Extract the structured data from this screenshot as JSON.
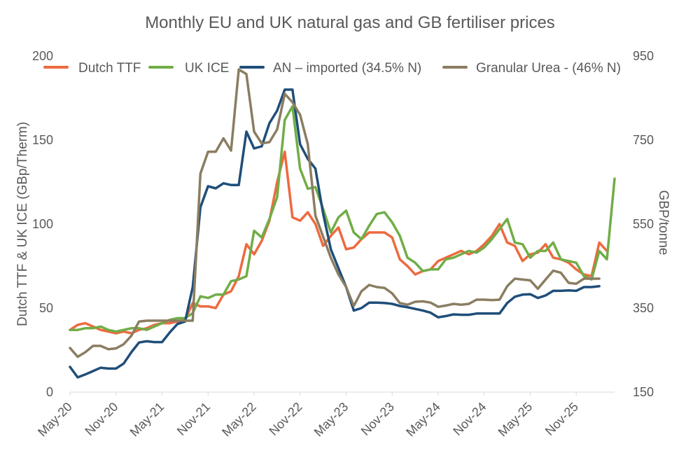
{
  "chart_data": {
    "type": "line",
    "title": "Monthly EU and UK natural gas and GB fertiliser prices",
    "ylabel_left": "Dutch TTF & UK ICE (GBp/Therm)",
    "ylabel_right": "GBP/tonne",
    "ylim_left": [
      0,
      200
    ],
    "ylim_right": [
      150,
      950
    ],
    "yticks_left": [
      "0",
      "50",
      "100",
      "150",
      "200"
    ],
    "yticks_right": [
      "150",
      "350",
      "550",
      "750",
      "950"
    ],
    "xticks": [
      "May-20",
      "Nov-20",
      "May-21",
      "Nov-21",
      "May-22",
      "Nov-22",
      "May-23",
      "Nov-23",
      "May-24",
      "Nov-24",
      "May-25",
      "Nov-25"
    ],
    "x_start": "2020-05",
    "legend_position": "top",
    "grid": false,
    "series": [
      {
        "name": "Dutch TTF",
        "axis": "left",
        "color": "#ED6A3F",
        "values": [
          37,
          40,
          41,
          39,
          37,
          36,
          35,
          36,
          35,
          37,
          38,
          40,
          41,
          41,
          42,
          43,
          53,
          51,
          51,
          50,
          58,
          60,
          69,
          88,
          82,
          90,
          102,
          125,
          143,
          104,
          102,
          107,
          100,
          87,
          93,
          98,
          85,
          86,
          91,
          95,
          95,
          95,
          92,
          79,
          75,
          70,
          72,
          73,
          78,
          80,
          82,
          84,
          82,
          84,
          88,
          93,
          100,
          89,
          87,
          78,
          82,
          83,
          88,
          80,
          79,
          77,
          73,
          70,
          69,
          89,
          84
        ]
      },
      {
        "name": "UK ICE",
        "axis": "left",
        "color": "#70AD47",
        "values": [
          37,
          37,
          38,
          38,
          39,
          37,
          36,
          37,
          38,
          38,
          37,
          39,
          41,
          43,
          44,
          44,
          47,
          57,
          56,
          58,
          58,
          66,
          67,
          69,
          96,
          92,
          103,
          116,
          162,
          170,
          133,
          121,
          122,
          109,
          95,
          104,
          108,
          95,
          91,
          99,
          106,
          107,
          101,
          93,
          80,
          77,
          72,
          73,
          73,
          79,
          80,
          82,
          84,
          83,
          86,
          91,
          97,
          103,
          89,
          88,
          80,
          84,
          84,
          89,
          79,
          78,
          77,
          69,
          67,
          84,
          79,
          127
        ]
      },
      {
        "name": "AN – imported (34.5% N)",
        "axis": "right",
        "color": "#1F4E79",
        "values": [
          210,
          185,
          192,
          200,
          208,
          206,
          206,
          218,
          245,
          268,
          271,
          269,
          269,
          292,
          312,
          318,
          400,
          590,
          640,
          635,
          647,
          643,
          643,
          770,
          730,
          735,
          790,
          820,
          870,
          870,
          740,
          705,
          682,
          575,
          490,
          445,
          400,
          344,
          350,
          363,
          363,
          362,
          360,
          355,
          352,
          348,
          344,
          339,
          328,
          331,
          335,
          334,
          334,
          337,
          337,
          337,
          337,
          362,
          377,
          382,
          383,
          374,
          380,
          391,
          391,
          392,
          391,
          400,
          400,
          402
        ]
      },
      {
        "name": "Granular Urea - (46% N)",
        "axis": "right",
        "color": "#8B7D61",
        "values": [
          255,
          234,
          245,
          260,
          260,
          252,
          254,
          264,
          284,
          318,
          320,
          320,
          320,
          320,
          320,
          320,
          320,
          670,
          722,
          722,
          754,
          725,
          918,
          907,
          770,
          742,
          745,
          775,
          860,
          840,
          810,
          740,
          570,
          520,
          470,
          430,
          400,
          355,
          390,
          405,
          400,
          398,
          385,
          362,
          358,
          365,
          366,
          363,
          353,
          356,
          360,
          358,
          360,
          370,
          370,
          369,
          370,
          402,
          420,
          418,
          416,
          396,
          418,
          439,
          434,
          410,
          408,
          420,
          420,
          420
        ]
      }
    ]
  }
}
